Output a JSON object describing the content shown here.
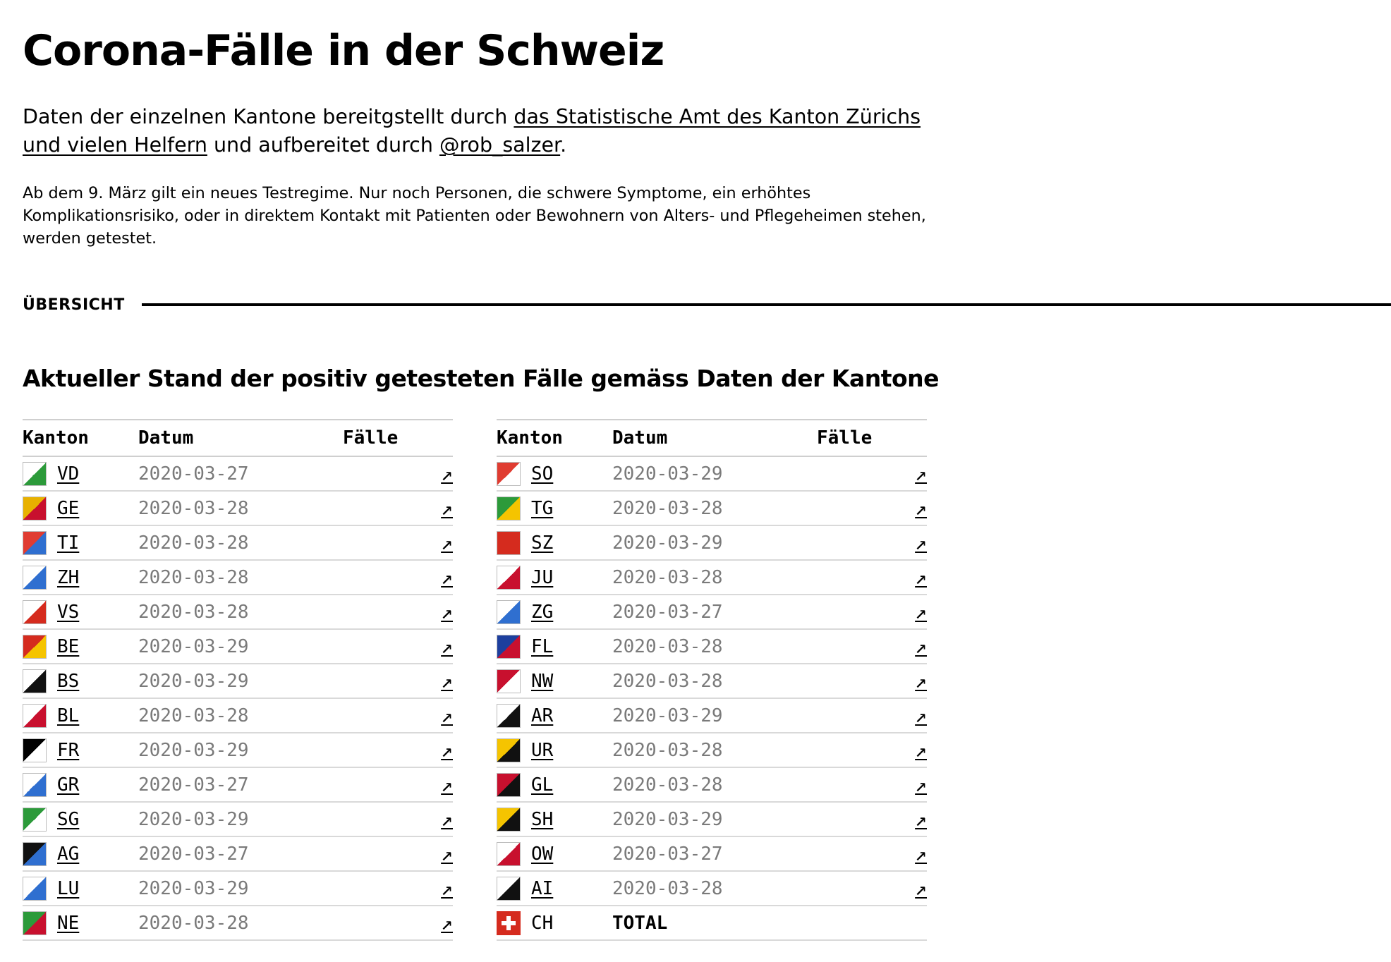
{
  "page": {
    "title": "Corona-Fälle in der Schweiz",
    "lead": {
      "text_before": "Daten der einzelnen Kantone bereitgstellt durch ",
      "link1": "das Statistische Amt des Kanton Zürichs und vielen Helfern",
      "text_middle": " und aufbereitet durch ",
      "link2": "@rob_salzer",
      "text_after": "."
    },
    "note": "Ab dem 9. März gilt ein neues Testregime. Nur noch Personen, die schwere Symptome, ein erhöhtes Komplikationsrisiko, oder in direktem Kontakt mit Patienten oder Bewohnern von Alters- und Pflegeheimen stehen, werden getestet.",
    "section_label": "ÜBERSICHT",
    "table_heading": "Aktueller Stand der positiv getesteten Fälle gemäss Daten der Kantone"
  },
  "table": {
    "headers": {
      "kanton": "Kanton",
      "datum": "Datum",
      "faelle": "Fälle"
    },
    "link_icon": "↗",
    "left": [
      {
        "code": "VD",
        "date": "2020-03-27",
        "flag": [
          "#ffffff",
          "#2c9a3a"
        ]
      },
      {
        "code": "GE",
        "date": "2020-03-28",
        "flag": [
          "#e8b100",
          "#c8102e"
        ]
      },
      {
        "code": "TI",
        "date": "2020-03-28",
        "flag": [
          "#e03c31",
          "#2f6fd0"
        ]
      },
      {
        "code": "ZH",
        "date": "2020-03-28",
        "flag": [
          "#ffffff",
          "#2f6fd0"
        ]
      },
      {
        "code": "VS",
        "date": "2020-03-28",
        "flag": [
          "#ffffff",
          "#d52b1e"
        ]
      },
      {
        "code": "BE",
        "date": "2020-03-29",
        "flag": [
          "#d52b1e",
          "#f5c400"
        ]
      },
      {
        "code": "BS",
        "date": "2020-03-29",
        "flag": [
          "#ffffff",
          "#111111"
        ]
      },
      {
        "code": "BL",
        "date": "2020-03-28",
        "flag": [
          "#ffffff",
          "#c8102e"
        ]
      },
      {
        "code": "FR",
        "date": "2020-03-29",
        "flag": [
          "#000000",
          "#ffffff"
        ]
      },
      {
        "code": "GR",
        "date": "2020-03-27",
        "flag": [
          "#ffffff",
          "#2f6fd0"
        ]
      },
      {
        "code": "SG",
        "date": "2020-03-29",
        "flag": [
          "#2c9a3a",
          "#ffffff"
        ]
      },
      {
        "code": "AG",
        "date": "2020-03-27",
        "flag": [
          "#111111",
          "#2f6fd0"
        ]
      },
      {
        "code": "LU",
        "date": "2020-03-29",
        "flag": [
          "#ffffff",
          "#2f6fd0"
        ]
      },
      {
        "code": "NE",
        "date": "2020-03-28",
        "flag": [
          "#2c9a3a",
          "#c8102e"
        ]
      }
    ],
    "right": [
      {
        "code": "SO",
        "date": "2020-03-29",
        "flag": [
          "#e03c31",
          "#ffffff"
        ]
      },
      {
        "code": "TG",
        "date": "2020-03-28",
        "flag": [
          "#2c9a3a",
          "#f5c400"
        ]
      },
      {
        "code": "SZ",
        "date": "2020-03-29",
        "flag": [
          "#d52b1e",
          "#d52b1e"
        ]
      },
      {
        "code": "JU",
        "date": "2020-03-28",
        "flag": [
          "#ffffff",
          "#c8102e"
        ]
      },
      {
        "code": "ZG",
        "date": "2020-03-27",
        "flag": [
          "#ffffff",
          "#2f6fd0"
        ]
      },
      {
        "code": "FL",
        "date": "2020-03-28",
        "flag": [
          "#1d3f9e",
          "#c8102e"
        ]
      },
      {
        "code": "NW",
        "date": "2020-03-28",
        "flag": [
          "#c8102e",
          "#ffffff"
        ]
      },
      {
        "code": "AR",
        "date": "2020-03-29",
        "flag": [
          "#ffffff",
          "#111111"
        ]
      },
      {
        "code": "UR",
        "date": "2020-03-28",
        "flag": [
          "#f5c400",
          "#111111"
        ]
      },
      {
        "code": "GL",
        "date": "2020-03-28",
        "flag": [
          "#c8102e",
          "#111111"
        ]
      },
      {
        "code": "SH",
        "date": "2020-03-29",
        "flag": [
          "#f5c400",
          "#111111"
        ]
      },
      {
        "code": "OW",
        "date": "2020-03-27",
        "flag": [
          "#ffffff",
          "#c8102e"
        ]
      },
      {
        "code": "AI",
        "date": "2020-03-28",
        "flag": [
          "#ffffff",
          "#111111"
        ]
      }
    ],
    "total_row": {
      "code": "CH",
      "label": "TOTAL",
      "flag": [
        "#d52b1e",
        "#ffffff"
      ]
    }
  }
}
